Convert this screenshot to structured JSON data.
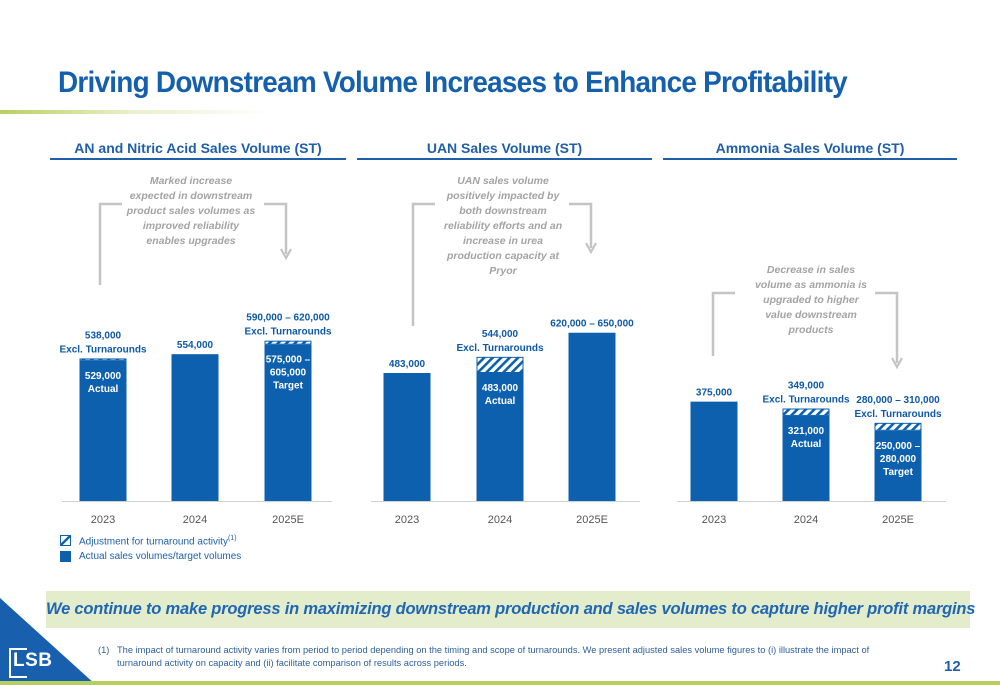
{
  "page": {
    "title": "Driving Downstream Volume Increases to Enhance Profitability",
    "banner": "We continue to make progress in maximizing downstream production and sales volumes to capture higher profit margins",
    "footnote_mark": "(1)",
    "footnote": "The impact of turnaround activity varies from period to period depending on the timing and scope of turnarounds. We present adjusted sales volume figures to (i) illustrate the impact of turnaround activity on capacity and (ii) facilitate comparison of results across periods.",
    "page_number": "12",
    "logo_text": "LSB"
  },
  "legend": {
    "adjustment": "Adjustment for turnaround activity",
    "adjustment_sup": "(1)",
    "actual": "Actual sales volumes/target volumes"
  },
  "colors": {
    "bar": "#0d60ad",
    "heading": "#1f5fa8",
    "annotation": "#a3a3a3",
    "accent_green": "#b7cf61",
    "banner_bg": "#e3eccb"
  },
  "chart_data": [
    {
      "type": "bar",
      "title": "AN and Nitric Acid Sales Volume (ST)",
      "categories": [
        "2023",
        "2024",
        "2025E"
      ],
      "actual_values": [
        529000,
        554000,
        590000
      ],
      "turnaround_adjustment": [
        9000,
        0,
        15000
      ],
      "labels_above": [
        [
          "538,000",
          "Excl. Turnarounds"
        ],
        [
          "554,000"
        ],
        [
          "590,000 – 620,000",
          "Excl. Turnarounds"
        ]
      ],
      "labels_inside": [
        [
          "529,000",
          "Actual"
        ],
        [],
        [
          "575,000 –",
          "605,000",
          "Target"
        ]
      ],
      "annotation": [
        "Marked increase",
        "expected in downstream",
        "product sales volumes as",
        "improved reliability",
        "enables upgrades"
      ]
    },
    {
      "type": "bar",
      "title": "UAN Sales Volume (ST)",
      "categories": [
        "2023",
        "2024",
        "2025E"
      ],
      "actual_values": [
        483000,
        483000,
        635000
      ],
      "turnaround_adjustment": [
        0,
        61000,
        0
      ],
      "labels_above": [
        [
          "483,000"
        ],
        [
          "544,000",
          "Excl. Turnarounds"
        ],
        [
          "620,000 – 650,000"
        ]
      ],
      "labels_inside": [
        [],
        [
          "483,000",
          "Actual"
        ],
        []
      ],
      "annotation": [
        "UAN sales volume",
        "positively impacted by",
        "both downstream",
        "reliability efforts and an",
        "increase in urea",
        "production capacity at",
        "Pryor"
      ]
    },
    {
      "type": "bar",
      "title": "Ammonia Sales Volume (ST)",
      "categories": [
        "2023",
        "2024",
        "2025E"
      ],
      "actual_values": [
        375000,
        321000,
        265000
      ],
      "turnaround_adjustment": [
        0,
        28000,
        30000
      ],
      "labels_above": [
        [
          "375,000"
        ],
        [
          "349,000",
          "Excl. Turnarounds"
        ],
        [
          "280,000 – 310,000",
          "Excl. Turnarounds"
        ]
      ],
      "labels_inside": [
        [],
        [
          "321,000",
          "Actual"
        ],
        [
          "250,000 –",
          "280,000",
          "Target"
        ]
      ],
      "annotation": [
        "Decrease in sales",
        "volume as ammonia is",
        "upgraded to higher",
        "value downstream",
        "products"
      ]
    }
  ]
}
